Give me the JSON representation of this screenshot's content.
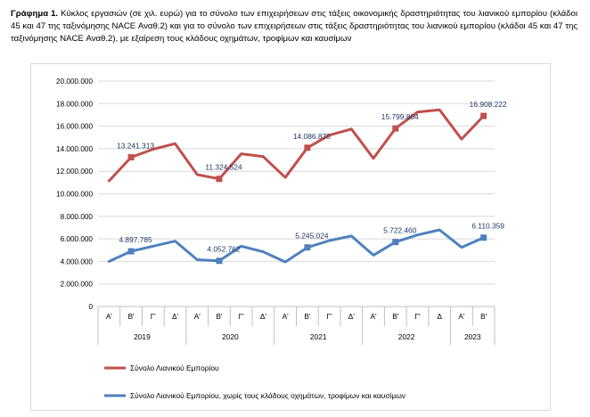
{
  "caption": {
    "label": "Γράφημα 1.",
    "text": "Κύκλος εργασιών (σε χιλ. ευρώ) για το σύνολο των επιχειρήσεων στις τάξεις οικονομικής δραστηριότητας του λιανικού εμπορίου (κλάδοι 45 και 47 της ταξινόμησης NACE Αναθ.2) και για το σύνολο των επιχειρήσεων στις τάξεις δραστηριότητας του λιανικού εμπορίου (κλάδοι 45 και 47 της ταξινόμησης NACE Αναθ.2), με εξαίρεση τους κλάδους οχημάτων, τροφίμων και καυσίμων"
  },
  "colors": {
    "series1": "#c0504d",
    "series2": "#4f81bd",
    "grid": "#d9d9d9",
    "label": "#1f3864",
    "axis_text": "#000000"
  },
  "chart_data": {
    "type": "line",
    "categories": [
      "Α'",
      "Β'",
      "Γ'",
      "Δ'",
      "Α'",
      "Β'",
      "Γ'",
      "Δ'",
      "Α'",
      "Β'",
      "Γ'",
      "Δ'",
      "Α'",
      "Β'",
      "Γ'",
      "Δ",
      "Α'",
      "Β'"
    ],
    "years": [
      {
        "label": "2019",
        "span": 4
      },
      {
        "label": "2020",
        "span": 4
      },
      {
        "label": "2021",
        "span": 4
      },
      {
        "label": "2022",
        "span": 4
      },
      {
        "label": "2023",
        "span": 2
      }
    ],
    "ylim": [
      0,
      20000000
    ],
    "yticks": [
      0,
      2000000,
      4000000,
      6000000,
      8000000,
      10000000,
      12000000,
      14000000,
      16000000,
      18000000,
      20000000
    ],
    "ytick_labels": [
      "0",
      "2.000.000",
      "4.000.000",
      "6.000.000",
      "8.000.000",
      "10.000.000",
      "12.000.000",
      "14.000.000",
      "16.000.000",
      "18.000.000",
      "20.000.000"
    ],
    "grid": true,
    "legend_position": "bottom",
    "series": [
      {
        "name": "Σύνολο Λιανικού Εμπορίου",
        "color": "#c0504d",
        "values": [
          11150000,
          13241313,
          13950000,
          14450000,
          11700000,
          11324524,
          13550000,
          13300000,
          11450000,
          14086870,
          15200000,
          15750000,
          13150000,
          15799804,
          17250000,
          17450000,
          14850000,
          16908222
        ],
        "markers": [
          1,
          5,
          9,
          13,
          17
        ],
        "labels": [
          "13.241.313",
          "11.324.524",
          "14.086.870",
          "15.799.804",
          "16.908.222"
        ]
      },
      {
        "name": "Σύνολο Λιανικού Εμπορίου, χωρίς τους κλάδους οχημάτων, τροφίμων και καυσίμων",
        "color": "#4f81bd",
        "values": [
          4000000,
          4897785,
          5350000,
          5800000,
          4150000,
          4052762,
          5350000,
          4850000,
          3950000,
          5245024,
          5850000,
          6250000,
          4550000,
          5722460,
          6350000,
          6800000,
          5250000,
          6110359
        ],
        "markers": [
          1,
          5,
          9,
          13,
          17
        ],
        "labels": [
          "4.897.785",
          "4.052.762",
          "5.245.024",
          "5.722.460",
          "6.110.359"
        ]
      }
    ]
  }
}
